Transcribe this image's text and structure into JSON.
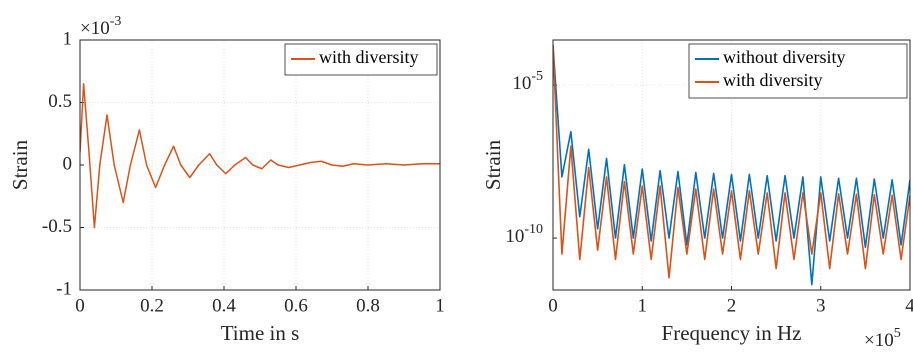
{
  "chart_data": [
    {
      "type": "line",
      "x_label": "Time in s",
      "y_label": "Strain",
      "y_multiplier": {
        "base": "×10",
        "exponent": "-3"
      },
      "x": [
        0,
        0.01,
        0.025,
        0.04,
        0.055,
        0.075,
        0.095,
        0.12,
        0.14,
        0.165,
        0.185,
        0.21,
        0.235,
        0.26,
        0.28,
        0.305,
        0.33,
        0.36,
        0.38,
        0.405,
        0.43,
        0.46,
        0.48,
        0.505,
        0.53,
        0.55,
        0.58,
        0.61,
        0.64,
        0.67,
        0.7,
        0.73,
        0.76,
        0.8,
        0.85,
        0.9,
        0.95,
        1.0
      ],
      "series": [
        {
          "name": "with diversity",
          "color": "#D95319",
          "values": [
            0.1,
            0.65,
            0.1,
            -0.5,
            0.0,
            0.4,
            0.0,
            -0.3,
            0.0,
            0.28,
            0.0,
            -0.18,
            0.0,
            0.15,
            0.0,
            -0.1,
            0.0,
            0.09,
            0.0,
            -0.07,
            0.0,
            0.06,
            0.0,
            -0.03,
            0.04,
            0.0,
            -0.02,
            0.0,
            0.02,
            0.03,
            0.0,
            -0.01,
            0.01,
            0.0,
            0.01,
            0.0,
            0.01,
            0.01
          ]
        }
      ],
      "xlim": [
        0,
        1
      ],
      "xticks": [
        0,
        0.2,
        0.4,
        0.6,
        0.8,
        1
      ],
      "ylim": [
        -1,
        1
      ],
      "yticks": [
        -1,
        -0.5,
        0,
        0.5,
        1
      ],
      "grid": true,
      "legend": "northeast"
    },
    {
      "type": "line",
      "x_label": "Frequency in Hz",
      "y_label": "Strain",
      "x_multiplier": {
        "base": "×10",
        "exponent": "5"
      },
      "y_scale": "log",
      "x": [
        0,
        0.1,
        0.2,
        0.3,
        0.4,
        0.5,
        0.6,
        0.7,
        0.8,
        0.9,
        1.0,
        1.1,
        1.2,
        1.3,
        1.4,
        1.5,
        1.6,
        1.7,
        1.8,
        1.9,
        2.0,
        2.1,
        2.2,
        2.3,
        2.4,
        2.5,
        2.6,
        2.7,
        2.8,
        2.9,
        3.0,
        3.1,
        3.2,
        3.3,
        3.4,
        3.5,
        3.6,
        3.7,
        3.8,
        3.9,
        4.0
      ],
      "series": [
        {
          "name": "without diversity",
          "color": "#0072BD",
          "values": [
            0.0002,
            1e-08,
            3e-07,
            5e-10,
            8e-08,
            2e-10,
            4e-08,
            1e-10,
            2.5e-08,
            1e-10,
            1.8e-08,
            8e-11,
            1.6e-08,
            1e-10,
            1.5e-08,
            6e-11,
            1.4e-08,
            1e-10,
            1.3e-08,
            1e-10,
            1.2e-08,
            8e-11,
            1.2e-08,
            1e-10,
            1.1e-08,
            8e-11,
            1.1e-08,
            1e-10,
            1e-08,
            3e-12,
            1e-08,
            8e-11,
            9e-09,
            1e-10,
            9e-09,
            5e-11,
            8.5e-09,
            1e-10,
            8e-09,
            6e-11,
            8e-09
          ]
        },
        {
          "name": "with diversity",
          "color": "#D95319",
          "values": [
            0.0002,
            3e-11,
            1e-07,
            2e-11,
            2e-08,
            4e-11,
            1e-08,
            2e-11,
            7e-09,
            3e-11,
            5e-09,
            2e-11,
            5e-09,
            5e-12,
            4.5e-09,
            3e-11,
            4e-09,
            2e-11,
            4e-09,
            3e-11,
            3.5e-09,
            2e-11,
            3.5e-09,
            3e-11,
            3e-09,
            1e-11,
            3e-09,
            2e-11,
            3e-09,
            3e-11,
            3e-09,
            1e-11,
            2.8e-09,
            3e-11,
            2.7e-09,
            1e-11,
            2.6e-09,
            3e-11,
            2.5e-09,
            2e-11,
            2.5e-09
          ]
        }
      ],
      "xlim": [
        0,
        4
      ],
      "xticks": [
        0,
        1,
        2,
        3,
        4
      ],
      "ylim": [
        2e-12,
        0.0003
      ],
      "yticks": [
        {
          "value": 1e-10,
          "label": "10",
          "exponent": "-10"
        },
        {
          "value": 1e-05,
          "label": "10",
          "exponent": "-5"
        }
      ],
      "grid": true,
      "legend": "northeast"
    }
  ]
}
